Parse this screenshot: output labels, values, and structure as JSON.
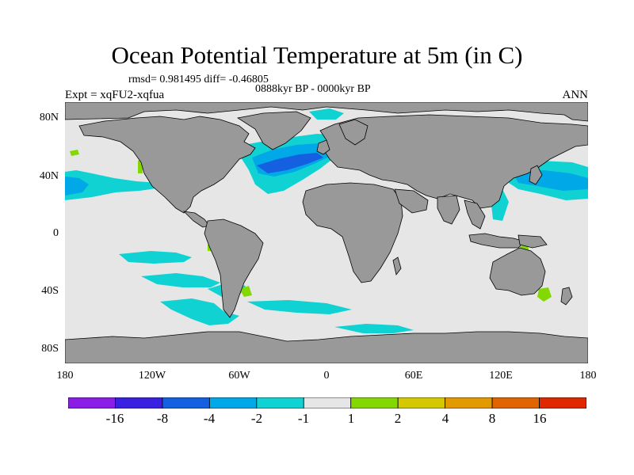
{
  "header": {
    "title": "Ocean Potential Temperature at 5m (in C)",
    "stats": "rmsd= 0.981495 diff= -0.46805",
    "period": "0888kyr BP - 0000kyr BP",
    "experiment": "Expt = xqFU2-xqfua",
    "season": "ANN"
  },
  "axes": {
    "y_labels": [
      "80N",
      "40N",
      "0",
      "40S",
      "80S"
    ],
    "x_labels": [
      "180",
      "120W",
      "60W",
      "0",
      "60E",
      "120E",
      "180"
    ]
  },
  "colors": {
    "ocean_neutral": "#e6e6e6",
    "land": "#999999",
    "coast": "#000000"
  },
  "colorbar": {
    "labels": [
      "-16",
      "-8",
      "-4",
      "-2",
      "-1",
      "1",
      "2",
      "4",
      "8",
      "16"
    ],
    "colors": [
      "#8a1ee6",
      "#3a20e0",
      "#1560e0",
      "#00a8e8",
      "#10d2d2",
      "#e6e6e6",
      "#82d800",
      "#d4c800",
      "#e29a00",
      "#e06400",
      "#e02800"
    ]
  }
}
